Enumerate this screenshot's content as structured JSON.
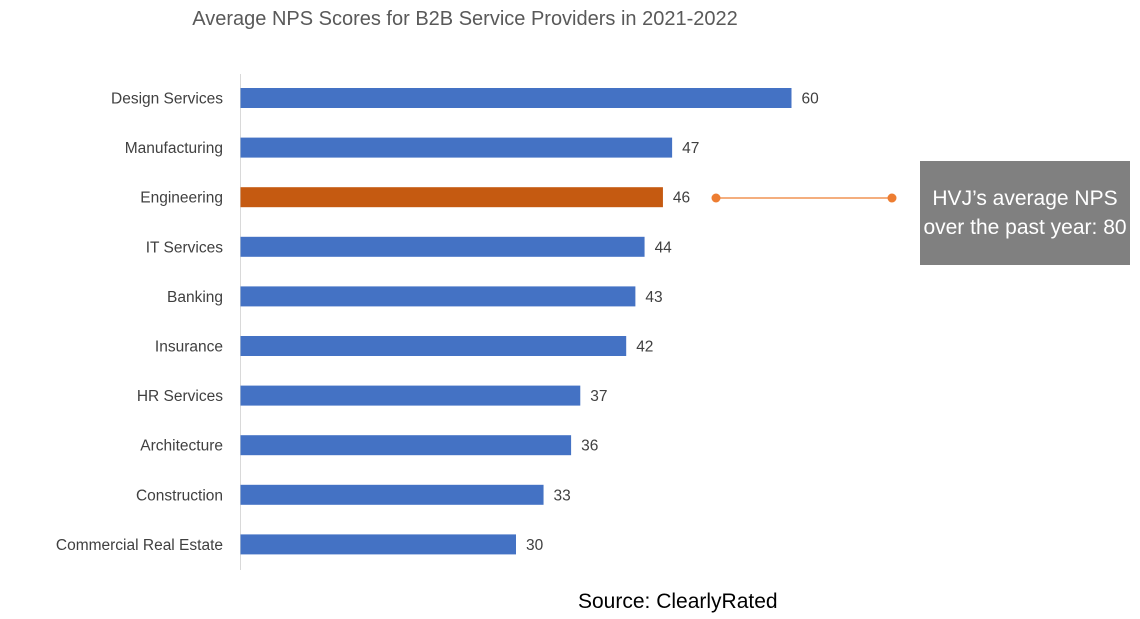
{
  "chart_data": {
    "type": "bar",
    "orientation": "horizontal",
    "title": "Average NPS Scores for B2B Service Providers in 2021-2022",
    "categories": [
      "Design Services",
      "Manufacturing",
      "Engineering",
      "IT Services",
      "Banking",
      "Insurance",
      "HR Services",
      "Architecture",
      "Construction",
      "Commercial Real Estate"
    ],
    "values": [
      60,
      47,
      46,
      44,
      43,
      42,
      37,
      36,
      33,
      30
    ],
    "highlight_category": "Engineering",
    "xlim": [
      0,
      60
    ],
    "grid": false,
    "data_labels": true,
    "colors": {
      "bar": "#4472C4",
      "highlight": "#C55A11",
      "connector": "#ED7D31",
      "callout_bg": "#808080"
    },
    "annotation": "HVJ’s average NPS over the past year: 80",
    "source": "Source: ClearlyRated"
  }
}
